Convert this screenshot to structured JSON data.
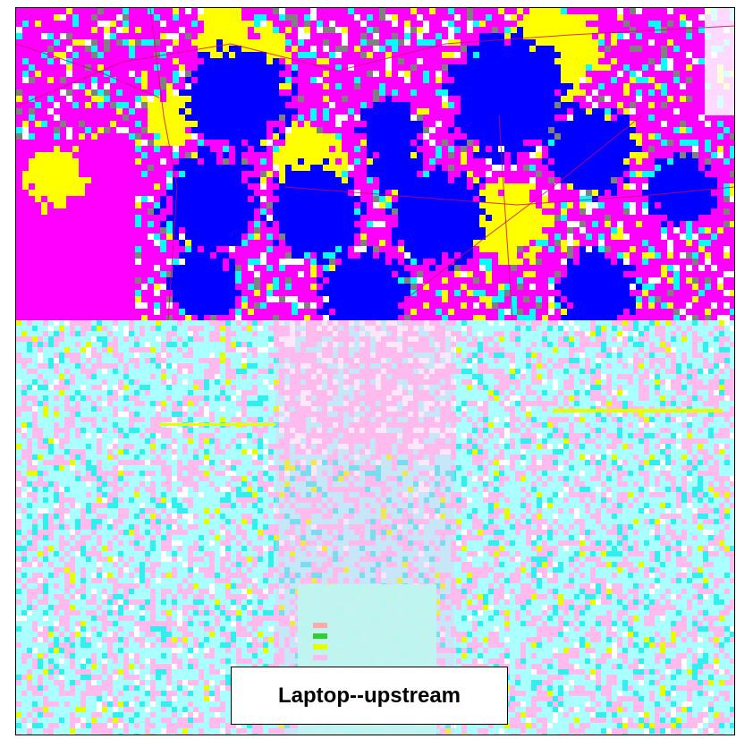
{
  "caption": "Laptop--upstream",
  "maps": {
    "upper": {
      "legend_colors": [
        "#ff00ff",
        "#0000ff",
        "#ffff00",
        "#00ffff",
        "#808080",
        "#ffffff"
      ],
      "line_color": "#cc0066"
    },
    "lower": {
      "legend_colors": [
        "#aaffff",
        "#ffbbee",
        "#33eeee",
        "#e6ff00",
        "#ffffff"
      ],
      "inset_legend_swatches": [
        "#ffaaaa",
        "#33cc33",
        "#e6ff00",
        "#ffbbee"
      ]
    }
  }
}
